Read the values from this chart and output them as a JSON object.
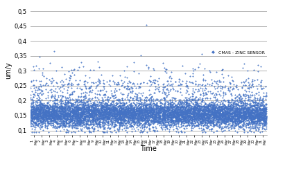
{
  "title": "",
  "ylabel": "um/y",
  "xlabel": "Time",
  "legend_label": "CMAS - ZINC SENSOR",
  "ylim": [
    0.085,
    0.52
  ],
  "yticks": [
    0.1,
    0.15,
    0.2,
    0.25,
    0.3,
    0.35,
    0.4,
    0.45,
    0.5
  ],
  "ytick_labels": [
    "0,1",
    "0,15",
    "0,2",
    "0,25",
    "0,3",
    "0,35",
    "0,4",
    "0,45",
    "0,5"
  ],
  "marker_color": "#4472C4",
  "marker": "D",
  "marker_size": 1.8,
  "n_days": 31,
  "points_per_day": 288,
  "base_mean": 0.155,
  "base_std": 0.022,
  "background_color": "#ffffff",
  "grid_color": "#b0b0b0",
  "grid_linewidth": 0.7,
  "figsize": [
    4.37,
    2.5
  ],
  "dpi": 100
}
